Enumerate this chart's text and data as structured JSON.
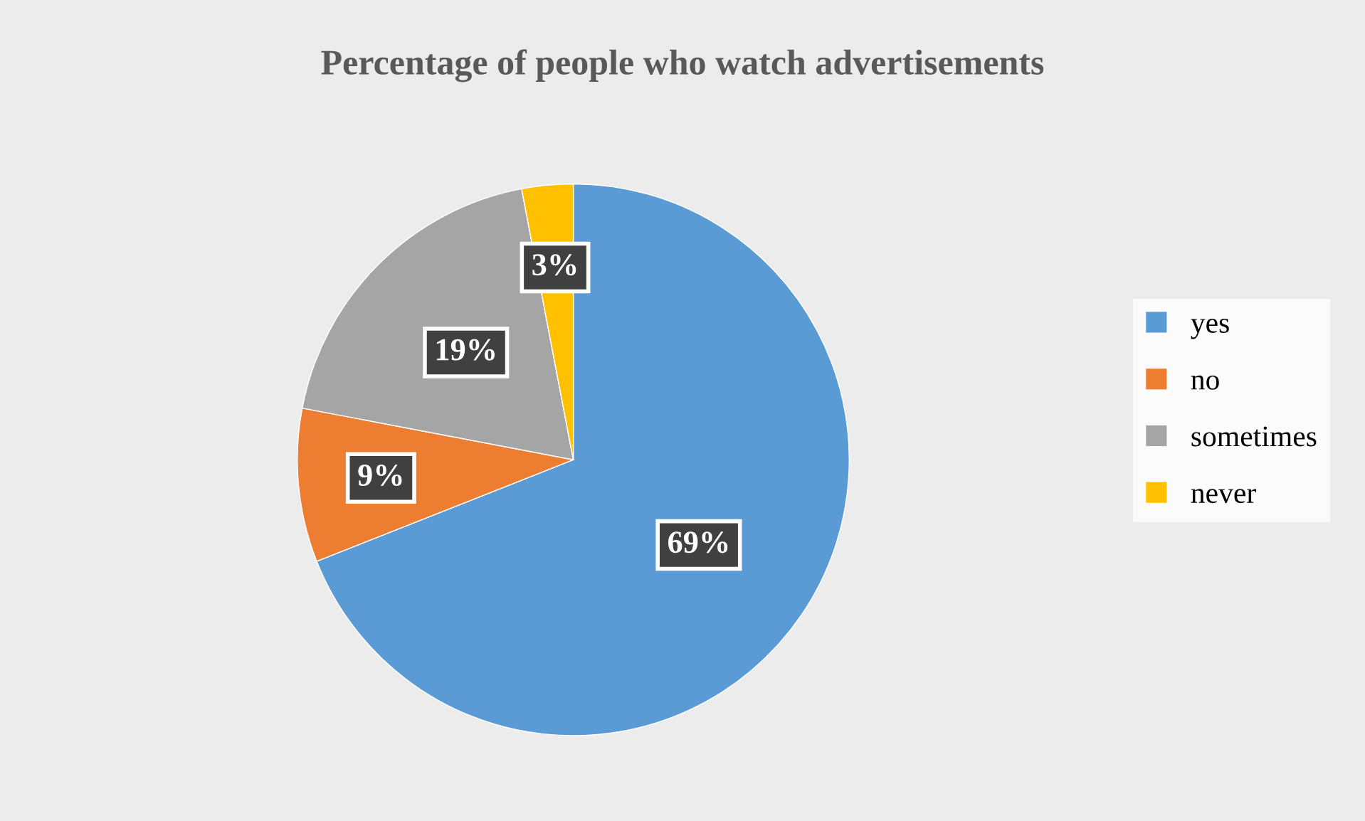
{
  "chart_data": {
    "type": "pie",
    "title": "Percentage of people who watch advertisements",
    "categories": [
      "yes",
      "no",
      "sometimes",
      "never"
    ],
    "values": [
      69,
      9,
      19,
      3
    ],
    "value_labels": [
      "69%",
      "9%",
      "19%",
      "3%"
    ],
    "colors": [
      "#5b9bd5",
      "#ed7d31",
      "#a5a5a5",
      "#ffc000"
    ],
    "legend": "right"
  }
}
